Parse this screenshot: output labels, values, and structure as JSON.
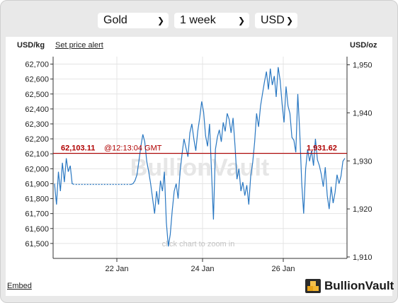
{
  "selectors": {
    "metal": "Gold",
    "period": "1 week",
    "currency": "USD"
  },
  "header": {
    "left_unit": "USD/kg",
    "alert_link": "Set price alert",
    "right_unit": "USD/oz"
  },
  "chart_data": {
    "type": "line",
    "title": "",
    "left_axis": {
      "label": "USD/kg",
      "ylim": [
        61400,
        62750
      ],
      "ticks": [
        61500,
        61600,
        61700,
        61800,
        61900,
        62000,
        62100,
        62200,
        62300,
        62400,
        62500,
        62600,
        62700
      ],
      "tick_labels": [
        "61,500",
        "61,600",
        "61,700",
        "61,800",
        "61,900",
        "62,000",
        "62,100",
        "62,200",
        "62,300",
        "62,400",
        "62,500",
        "62,600",
        "62,700"
      ]
    },
    "right_axis": {
      "label": "USD/oz",
      "ylim": [
        1909.7,
        1951.7
      ],
      "ticks": [
        1910,
        1920,
        1930,
        1940,
        1950
      ],
      "tick_labels": [
        "1,910",
        "1,920",
        "1,930",
        "1,940",
        "1,950"
      ]
    },
    "x_ticks": [
      "22 Jan",
      "24 Jan",
      "26 Jan"
    ],
    "grid": true,
    "current": {
      "value_kg": 62103.11,
      "value_kg_label": "62,103.11",
      "time_label": "@12:13:04 GMT",
      "value_oz": 1931.62,
      "value_oz_label": "1,931.62"
    },
    "watermark": "BullionVault",
    "hint": "click chart to zoom in",
    "series": [
      {
        "values": [
          61900,
          61760,
          61980,
          61850,
          62040,
          61910,
          62070,
          61980,
          62020,
          61900,
          61895,
          61895,
          61895,
          61895,
          61895,
          61895,
          61895,
          61895,
          61895,
          61895,
          61895,
          61895,
          61895,
          61895,
          61895,
          61895,
          61895,
          61895,
          61895,
          61895,
          61895,
          61895,
          61895,
          61895,
          61895,
          61895,
          61895,
          61895,
          61895,
          61895,
          61900,
          61920,
          61960,
          62050,
          62150,
          62230,
          62180,
          62050,
          61980,
          61900,
          61800,
          61700,
          61850,
          61760,
          61920,
          61850,
          61980,
          61640,
          61480,
          61560,
          61720,
          61850,
          61900,
          61800,
          61980,
          62100,
          62200,
          62140,
          62080,
          62240,
          62300,
          62200,
          62120,
          62250,
          62340,
          62450,
          62380,
          62220,
          62150,
          62300,
          61990,
          61660,
          62130,
          62210,
          62260,
          62180,
          62310,
          62250,
          62370,
          62330,
          62240,
          62340,
          62150,
          61930,
          62000,
          61850,
          61910,
          61820,
          61890,
          61760,
          61950,
          62040,
          62180,
          62370,
          62280,
          62420,
          62500,
          62580,
          62650,
          62530,
          62670,
          62560,
          62620,
          62480,
          62680,
          62590,
          62430,
          62310,
          62550,
          62420,
          62370,
          62210,
          62190,
          62110,
          62500,
          62240,
          61900,
          61700,
          62000,
          62130,
          62050,
          62120,
          62020,
          62200,
          62060,
          62020,
          61960,
          61880,
          62010,
          61820,
          61730,
          61880,
          61770,
          61840,
          61960,
          61900,
          61950,
          62050,
          62070
        ]
      }
    ]
  }
}
